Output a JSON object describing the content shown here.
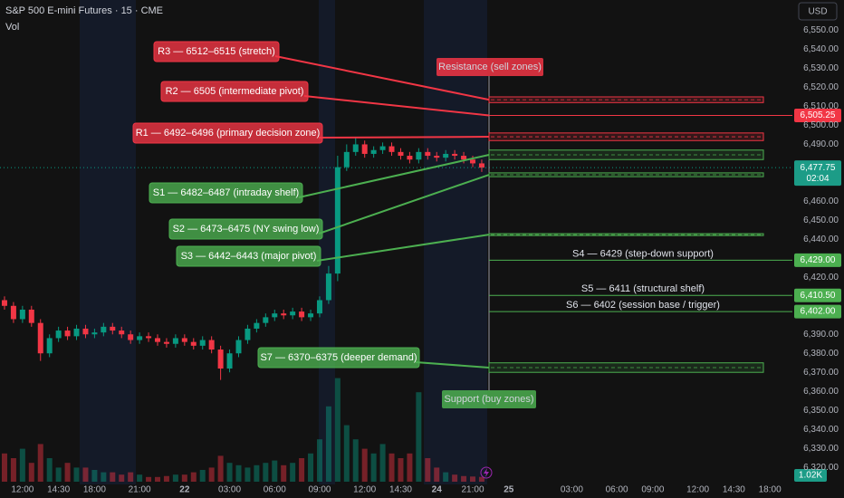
{
  "header": {
    "title": "S&P 500 E-mini Futures · 15 · CME",
    "volume_label": "Vol",
    "currency": "USD"
  },
  "chart_data": {
    "type": "candlestick",
    "categories": [
      null,
      null,
      "12:00",
      null,
      null,
      null,
      "14:30",
      null,
      null,
      null,
      "18:00",
      null,
      null,
      null,
      null,
      "21:00",
      null,
      null,
      null,
      null,
      "22",
      null,
      null,
      null,
      null,
      "03:00",
      null,
      null,
      null,
      null,
      "06:00",
      null,
      null,
      null,
      null,
      "09:00",
      null,
      null,
      null,
      null,
      "12:00",
      null,
      null,
      null,
      "14:30",
      null,
      null,
      null,
      "24",
      null,
      null,
      null,
      "21:00",
      null,
      null,
      null,
      "25",
      null,
      null,
      null,
      null,
      null,
      null,
      "03:00",
      null,
      null,
      null,
      null,
      "06:00",
      null,
      null,
      null,
      "09:00",
      null,
      null,
      null,
      null,
      "12:00",
      null,
      null,
      null,
      "14:30",
      null,
      null,
      null,
      "18:00",
      null,
      null
    ],
    "open": [
      6408,
      6405,
      6398,
      6403,
      6396,
      6380,
      6388,
      6392,
      6389,
      6393,
      6390,
      6391,
      6394,
      6392,
      6390,
      6387,
      6389,
      6388,
      6386,
      6385,
      6388,
      6386,
      6384,
      6387,
      6382,
      6372,
      6380,
      6387,
      6393,
      6396,
      6399,
      6401,
      6400,
      6402,
      6399,
      6401,
      6408,
      6422,
      6478,
      6486,
      6490,
      6485,
      6487,
      6489,
      6486,
      6484,
      6482,
      6486,
      6484,
      6483,
      6485,
      6484,
      6482,
      6480,
      null,
      null,
      null,
      null,
      null,
      null,
      null,
      null,
      null,
      null,
      null,
      null,
      null,
      null,
      null,
      null,
      null,
      null,
      null,
      null,
      null,
      null,
      null,
      null,
      null,
      null,
      null,
      null,
      null,
      null,
      null,
      null,
      null,
      null
    ],
    "high": [
      6410,
      6407,
      6405,
      6405,
      6398,
      6390,
      6394,
      6394,
      6395,
      6395,
      6393,
      6396,
      6396,
      6394,
      6392,
      6391,
      6391,
      6390,
      6388,
      6390,
      6390,
      6388,
      6389,
      6389,
      6384,
      6382,
      6389,
      6395,
      6398,
      6401,
      6403,
      6403,
      6404,
      6404,
      6403,
      6410,
      6426,
      6484,
      6490,
      6494,
      6492,
      6489,
      6491,
      6491,
      6488,
      6486,
      6488,
      6488,
      6486,
      6487,
      6487,
      6486,
      6484,
      6482,
      null,
      null,
      null,
      null,
      null,
      null,
      null,
      null,
      null,
      null,
      null,
      null,
      null,
      null,
      null,
      null,
      null,
      null,
      null,
      null,
      null,
      null,
      null,
      null,
      null,
      null,
      null,
      null,
      null,
      null,
      null,
      null,
      null,
      null
    ],
    "low": [
      6403,
      6396,
      6396,
      6394,
      6376,
      6378,
      6386,
      6387,
      6387,
      6388,
      6388,
      6389,
      6390,
      6388,
      6385,
      6385,
      6386,
      6384,
      6383,
      6383,
      6384,
      6382,
      6382,
      6380,
      6366,
      6370,
      6378,
      6385,
      6391,
      6394,
      6397,
      6398,
      6398,
      6397,
      6397,
      6399,
      6406,
      6418,
      6476,
      6484,
      6483,
      6483,
      6485,
      6484,
      6482,
      6480,
      6480,
      6482,
      6481,
      6481,
      6482,
      6480,
      6478,
      6475.5,
      null,
      null,
      null,
      null,
      null,
      null,
      null,
      null,
      null,
      null,
      null,
      null,
      null,
      null,
      null,
      null,
      null,
      null,
      null,
      null,
      null,
      null,
      null,
      null,
      null,
      null,
      null,
      null,
      null,
      null,
      null,
      null,
      null,
      null
    ],
    "close": [
      6405,
      6398,
      6403,
      6396,
      6380,
      6388,
      6392,
      6389,
      6393,
      6390,
      6391,
      6394,
      6392,
      6390,
      6387,
      6389,
      6388,
      6386,
      6385,
      6388,
      6386,
      6384,
      6387,
      6382,
      6372,
      6380,
      6387,
      6393,
      6396,
      6399,
      6401,
      6400,
      6402,
      6399,
      6401,
      6408,
      6422,
      6478,
      6486,
      6490,
      6485,
      6487,
      6489,
      6486,
      6484,
      6482,
      6486,
      6484,
      6483,
      6485,
      6484,
      6482,
      6480,
      6477.75,
      null,
      null,
      null,
      null,
      null,
      null,
      null,
      null,
      null,
      null,
      null,
      null,
      null,
      null,
      null,
      null,
      null,
      null,
      null,
      null,
      null,
      null,
      null,
      null,
      null,
      null,
      null,
      null,
      null,
      null,
      null,
      null,
      null,
      null
    ],
    "up_color": "#089981",
    "down_color": "#f23645",
    "ylim": [
      6311,
      6566
    ],
    "yticks": [
      {
        "value": 6550,
        "label": "6,550.00"
      },
      {
        "value": 6540,
        "label": "6,540.00"
      },
      {
        "value": 6530,
        "label": "6,530.00"
      },
      {
        "value": 6520,
        "label": "6,520.00"
      },
      {
        "value": 6510,
        "label": "6,510.00"
      },
      {
        "value": 6500,
        "label": "6,500.00"
      },
      {
        "value": 6490,
        "label": "6,490.00"
      },
      {
        "value": 6460,
        "label": "6,460.00"
      },
      {
        "value": 6450,
        "label": "6,450.00"
      },
      {
        "value": 6440,
        "label": "6,440.00"
      },
      {
        "value": 6420,
        "label": "6,420.00"
      },
      {
        "value": 6390,
        "label": "6,390.00"
      },
      {
        "value": 6380,
        "label": "6,380.00"
      },
      {
        "value": 6370,
        "label": "6,370.00"
      },
      {
        "value": 6360,
        "label": "6,360.00"
      },
      {
        "value": 6350,
        "label": "6,350.00"
      },
      {
        "value": 6340,
        "label": "6,340.00"
      },
      {
        "value": 6330,
        "label": "6,330.00"
      },
      {
        "value": 6320,
        "label": "6,320.00"
      }
    ],
    "last_price": {
      "value": 6477.75,
      "label": "6,477.75",
      "countdown": "02:04"
    },
    "volume": {
      "values": [
        6000,
        5000,
        7000,
        4000,
        8000,
        5000,
        3000,
        4000,
        3000,
        3000,
        2500,
        2000,
        2000,
        1500,
        2000,
        1500,
        1000,
        1000,
        1200,
        1500,
        1500,
        2000,
        2500,
        3000,
        5500,
        4000,
        3500,
        3000,
        3500,
        4000,
        4500,
        3500,
        4000,
        5000,
        6000,
        9000,
        16000,
        22000,
        12000,
        9000,
        7000,
        6000,
        8000,
        6000,
        5000,
        6000,
        19000,
        5000,
        3000,
        2000,
        1500,
        1200,
        1100,
        1020,
        null,
        null,
        null,
        null,
        null,
        null,
        null,
        null,
        null,
        null,
        null,
        null,
        null,
        null,
        null,
        null,
        null,
        null,
        null,
        null,
        null,
        null,
        null,
        null,
        null,
        null,
        null,
        null,
        null,
        null,
        null,
        null,
        null,
        null
      ],
      "value_labels": [
        null,
        null,
        null,
        null,
        null,
        null,
        null,
        null,
        null,
        null,
        null,
        null,
        null,
        null,
        null,
        null,
        null,
        null,
        null,
        null,
        null,
        null,
        null,
        null,
        null,
        null,
        null,
        null,
        null,
        null,
        null,
        null,
        null,
        null,
        null,
        null,
        null,
        null,
        null,
        null,
        null,
        null,
        null,
        null,
        null,
        null,
        null,
        null,
        null,
        null,
        null,
        null,
        null,
        "1.02K",
        null,
        null,
        null,
        null,
        null,
        null,
        null,
        null,
        null,
        null,
        null,
        null,
        null,
        null,
        null,
        null,
        null,
        null,
        null,
        null,
        null,
        null,
        null,
        null,
        null,
        null,
        null,
        null,
        null,
        null,
        null,
        null,
        null,
        null
      ],
      "ylim": [
        0,
        25000
      ]
    },
    "resistance_label": "Resistance (sell zones)",
    "support_label": "Support (buy zones)",
    "resistance_color": "#f23645",
    "support_color": "#4caf50",
    "levels": [
      {
        "label": "R3 — 6512–6515 (stretch)",
        "low": 6512,
        "high": 6515,
        "side": "resistance"
      },
      {
        "label": "R2 — 6505 (intermediate pivot)",
        "value": 6505.25,
        "value_label": "6,505.25",
        "side": "resistance"
      },
      {
        "label": "R1 — 6492–6496 (primary decision zone)",
        "low": 6492,
        "high": 6496,
        "side": "resistance"
      },
      {
        "label": "S1 — 6482–6487 (intraday shelf)",
        "low": 6482,
        "high": 6487,
        "side": "support"
      },
      {
        "label": "S2 — 6473–6475 (NY swing low)",
        "low": 6473,
        "high": 6475,
        "side": "support"
      },
      {
        "label": "S3 — 6442–6443 (major pivot)",
        "low": 6442,
        "high": 6443,
        "side": "support"
      },
      {
        "label": "S4 — 6429 (step-down support)",
        "value": 6429,
        "value_label": "6,429.00",
        "side": "support"
      },
      {
        "label": "S5 — 6411 (structural shelf)",
        "value": 6410.5,
        "value_label": "6,410.50",
        "side": "support"
      },
      {
        "label": "S6 — 6402 (session base / trigger)",
        "value": 6402,
        "value_label": "6,402.00",
        "side": "support"
      },
      {
        "label": "S7 — 6370–6375 (deeper demand)",
        "low": 6370,
        "high": 6375,
        "side": "support"
      }
    ]
  }
}
